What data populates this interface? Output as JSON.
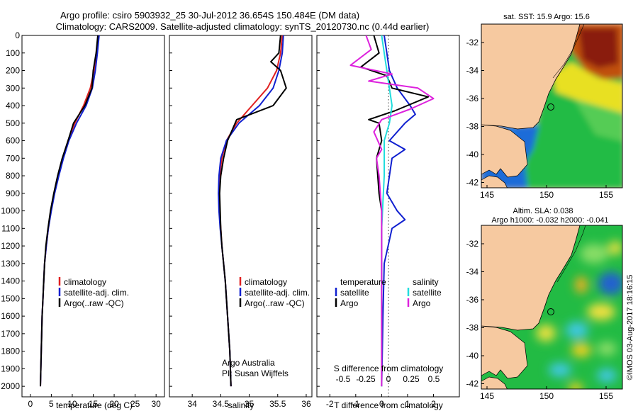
{
  "title_line1": "Argo profile: csiro 5903932_25 30-Jul-2012 36.654S 150.484E (DM data)",
  "title_line2": "Climatology: CARS2009. Satellite-adjusted climatology: synTS_20120730.nc (0.44d earlier)",
  "credit": "©IMOS 03-Aug-2017 18:16:15",
  "colors": {
    "climatology": "#e02020",
    "satellite": "#1020d0",
    "argo": "#000000",
    "sal_satellite": "#22dddd",
    "sal_argo": "#dd22dd"
  },
  "chart_data": [
    {
      "type": "line",
      "name": "temperature-profile",
      "xlabel": "temperature (deg C)",
      "ylabel": "",
      "xlim": [
        -2,
        32
      ],
      "ylim": [
        0,
        2060
      ],
      "x_ticks": [
        0,
        5,
        10,
        15,
        20,
        25,
        30
      ],
      "y_ticks": [
        0,
        100,
        200,
        300,
        400,
        500,
        600,
        700,
        800,
        900,
        1000,
        1100,
        1200,
        1300,
        1400,
        1500,
        1600,
        1700,
        1800,
        1900,
        2000
      ],
      "legend": [
        "climatology",
        "satellite-adj. clim.",
        "Argo(..raw -QC)"
      ],
      "series": [
        {
          "name": "climatology",
          "points": [
            [
              16.2,
              0
            ],
            [
              15.8,
              100
            ],
            [
              15.2,
              200
            ],
            [
              14.3,
              300
            ],
            [
              12.7,
              400
            ],
            [
              10.6,
              500
            ],
            [
              9.0,
              600
            ],
            [
              7.8,
              700
            ],
            [
              6.7,
              800
            ],
            [
              5.7,
              900
            ],
            [
              4.9,
              1000
            ],
            [
              4.3,
              1100
            ],
            [
              3.8,
              1200
            ],
            [
              3.4,
              1300
            ],
            [
              3.2,
              1400
            ],
            [
              3.0,
              1500
            ],
            [
              2.8,
              1600
            ],
            [
              2.7,
              1700
            ],
            [
              2.6,
              1800
            ],
            [
              2.5,
              1900
            ],
            [
              2.4,
              2000
            ]
          ]
        },
        {
          "name": "satellite-adj. clim.",
          "points": [
            [
              16.4,
              0
            ],
            [
              16.0,
              100
            ],
            [
              15.5,
              200
            ],
            [
              14.8,
              300
            ],
            [
              13.3,
              400
            ],
            [
              11.0,
              500
            ],
            [
              9.2,
              600
            ],
            [
              7.9,
              700
            ],
            [
              6.8,
              800
            ],
            [
              5.8,
              900
            ],
            [
              5.0,
              1000
            ],
            [
              4.3,
              1100
            ],
            [
              3.8,
              1200
            ],
            [
              3.4,
              1300
            ],
            [
              3.2,
              1400
            ],
            [
              3.0,
              1500
            ],
            [
              2.8,
              1600
            ],
            [
              2.7,
              1700
            ],
            [
              2.6,
              1800
            ],
            [
              2.5,
              1900
            ],
            [
              2.4,
              2000
            ]
          ]
        },
        {
          "name": "Argo(..raw -QC)",
          "points": [
            [
              16.1,
              0
            ],
            [
              15.7,
              100
            ],
            [
              15.0,
              200
            ],
            [
              14.7,
              300
            ],
            [
              13.0,
              400
            ],
            [
              10.3,
              500
            ],
            [
              9.0,
              600
            ],
            [
              7.6,
              700
            ],
            [
              6.5,
              800
            ],
            [
              5.6,
              900
            ],
            [
              4.8,
              1000
            ],
            [
              4.2,
              1100
            ],
            [
              3.7,
              1200
            ],
            [
              3.4,
              1300
            ],
            [
              3.2,
              1400
            ],
            [
              3.0,
              1500
            ],
            [
              2.8,
              1600
            ],
            [
              2.7,
              1700
            ],
            [
              2.6,
              1800
            ],
            [
              2.5,
              1900
            ],
            [
              2.4,
              2000
            ]
          ]
        }
      ]
    },
    {
      "type": "line",
      "name": "salinity-profile",
      "xlabel": "salinity",
      "xlim": [
        33.6,
        36.1
      ],
      "ylim": [
        0,
        2060
      ],
      "x_ticks": [
        34,
        34.5,
        35,
        35.5,
        36
      ],
      "legend": [
        "climatology",
        "satellite-adj. clim.",
        "Argo(..raw -QC)"
      ],
      "annotation": [
        "Argo Australia",
        "PI: Susan Wijffels"
      ],
      "series": [
        {
          "name": "climatology",
          "points": [
            [
              35.58,
              0
            ],
            [
              35.55,
              100
            ],
            [
              35.48,
              200
            ],
            [
              35.32,
              300
            ],
            [
              35.05,
              400
            ],
            [
              34.78,
              500
            ],
            [
              34.6,
              600
            ],
            [
              34.52,
              700
            ],
            [
              34.48,
              800
            ],
            [
              34.47,
              900
            ],
            [
              34.48,
              1000
            ],
            [
              34.5,
              1100
            ],
            [
              34.52,
              1200
            ],
            [
              34.55,
              1300
            ],
            [
              34.58,
              1400
            ],
            [
              34.6,
              1500
            ],
            [
              34.62,
              1600
            ],
            [
              34.64,
              1700
            ],
            [
              34.66,
              1800
            ],
            [
              34.67,
              1900
            ],
            [
              34.68,
              2000
            ]
          ]
        },
        {
          "name": "satellite-adj. clim.",
          "points": [
            [
              35.6,
              0
            ],
            [
              35.58,
              100
            ],
            [
              35.52,
              200
            ],
            [
              35.42,
              300
            ],
            [
              35.18,
              400
            ],
            [
              34.82,
              500
            ],
            [
              34.6,
              600
            ],
            [
              34.5,
              700
            ],
            [
              34.47,
              800
            ],
            [
              34.46,
              900
            ],
            [
              34.47,
              1000
            ],
            [
              34.49,
              1100
            ],
            [
              34.52,
              1200
            ],
            [
              34.55,
              1300
            ],
            [
              34.58,
              1400
            ],
            [
              34.6,
              1500
            ],
            [
              34.62,
              1600
            ],
            [
              34.64,
              1700
            ],
            [
              34.66,
              1800
            ],
            [
              34.67,
              1900
            ],
            [
              34.68,
              2000
            ]
          ]
        },
        {
          "name": "Argo(..raw -QC)",
          "points": [
            [
              35.55,
              0
            ],
            [
              35.52,
              100
            ],
            [
              35.38,
              150
            ],
            [
              35.55,
              200
            ],
            [
              35.65,
              300
            ],
            [
              35.42,
              400
            ],
            [
              34.78,
              480
            ],
            [
              34.62,
              600
            ],
            [
              34.55,
              700
            ],
            [
              34.5,
              800
            ],
            [
              34.48,
              900
            ],
            [
              34.49,
              1000
            ],
            [
              34.5,
              1100
            ],
            [
              34.52,
              1200
            ],
            [
              34.55,
              1300
            ],
            [
              34.58,
              1400
            ],
            [
              34.6,
              1500
            ],
            [
              34.62,
              1600
            ],
            [
              34.64,
              1700
            ],
            [
              34.66,
              1800
            ],
            [
              34.67,
              1900
            ],
            [
              34.68,
              2000
            ]
          ]
        }
      ]
    },
    {
      "type": "line",
      "name": "difference-profile",
      "xlabel": "T difference from climatology",
      "xlabel_top": "S difference from climatology",
      "xlim": [
        -2.5,
        3.0
      ],
      "ylim": [
        0,
        2060
      ],
      "x_ticks": [
        -2,
        -1,
        0,
        1,
        2
      ],
      "x_ticks_top": [
        "-0.5",
        "-0.25",
        "0",
        "0.25",
        "0.5"
      ],
      "legend_temperature": [
        "temperature",
        "satellite",
        "Argo"
      ],
      "legend_salinity": [
        "salinity",
        "satellite",
        "Argo"
      ],
      "series": [
        {
          "name": "temperature satellite",
          "points": [
            [
              0.1,
              0
            ],
            [
              0.2,
              100
            ],
            [
              0.3,
              200
            ],
            [
              0.6,
              300
            ],
            [
              1.1,
              400
            ],
            [
              1.3,
              450
            ],
            [
              0.9,
              500
            ],
            [
              0.3,
              600
            ],
            [
              0.9,
              650
            ],
            [
              0.4,
              700
            ],
            [
              0.2,
              900
            ],
            [
              0.6,
              1000
            ],
            [
              0.9,
              1050
            ],
            [
              0.4,
              1100
            ],
            [
              0.1,
              1300
            ],
            [
              0.05,
              1600
            ],
            [
              0.0,
              2000
            ]
          ]
        },
        {
          "name": "temperature Argo",
          "points": [
            [
              -0.3,
              0
            ],
            [
              -0.1,
              100
            ],
            [
              -0.8,
              180
            ],
            [
              0.2,
              230
            ],
            [
              0.4,
              300
            ],
            [
              1.8,
              350
            ],
            [
              0.5,
              430
            ],
            [
              -0.5,
              480
            ],
            [
              -0.1,
              500
            ],
            [
              0.0,
              600
            ],
            [
              -0.2,
              700
            ],
            [
              -0.1,
              900
            ],
            [
              0.0,
              1000
            ],
            [
              0.0,
              1500
            ],
            [
              0.0,
              2000
            ]
          ]
        },
        {
          "name": "salinity satellite",
          "points": [
            [
              0.0,
              0
            ],
            [
              0.1,
              100
            ],
            [
              0.2,
              200
            ],
            [
              0.3,
              300
            ],
            [
              0.4,
              400
            ],
            [
              0.3,
              500
            ],
            [
              0.1,
              600
            ],
            [
              0.1,
              800
            ],
            [
              0.0,
              1100
            ],
            [
              0.0,
              1500
            ],
            [
              0.0,
              2000
            ]
          ]
        },
        {
          "name": "salinity Argo",
          "points": [
            [
              -0.6,
              0
            ],
            [
              -0.4,
              80
            ],
            [
              -1.2,
              170
            ],
            [
              0.4,
              220
            ],
            [
              -0.5,
              260
            ],
            [
              1.4,
              300
            ],
            [
              2.0,
              360
            ],
            [
              1.1,
              420
            ],
            [
              0.0,
              480
            ],
            [
              -0.3,
              550
            ],
            [
              0.0,
              650
            ],
            [
              -0.2,
              700
            ],
            [
              -0.1,
              800
            ],
            [
              0.0,
              1000
            ],
            [
              0.0,
              1500
            ],
            [
              0.0,
              2000
            ]
          ]
        }
      ]
    },
    {
      "type": "heatmap",
      "name": "sst-map",
      "title": "sat. SST: 15.9  Argo: 15.6",
      "x_ticks": [
        "145",
        "150",
        "155"
      ],
      "y_ticks": [
        "-32",
        "-34",
        "-36",
        "-38",
        "-40",
        "-42"
      ],
      "argo_position": {
        "lon": 150.484,
        "lat": -36.654
      }
    },
    {
      "type": "heatmap",
      "name": "sla-map",
      "title_line1": "Altim. SLA: 0.038",
      "title_line2": "Argo h1000: -0.032 h2000: -0.041",
      "x_ticks": [
        "145",
        "150",
        "155"
      ],
      "y_ticks": [
        "-32",
        "-34",
        "-36",
        "-38",
        "-40",
        "-42"
      ],
      "argo_position": {
        "lon": 150.484,
        "lat": -36.654
      }
    }
  ]
}
